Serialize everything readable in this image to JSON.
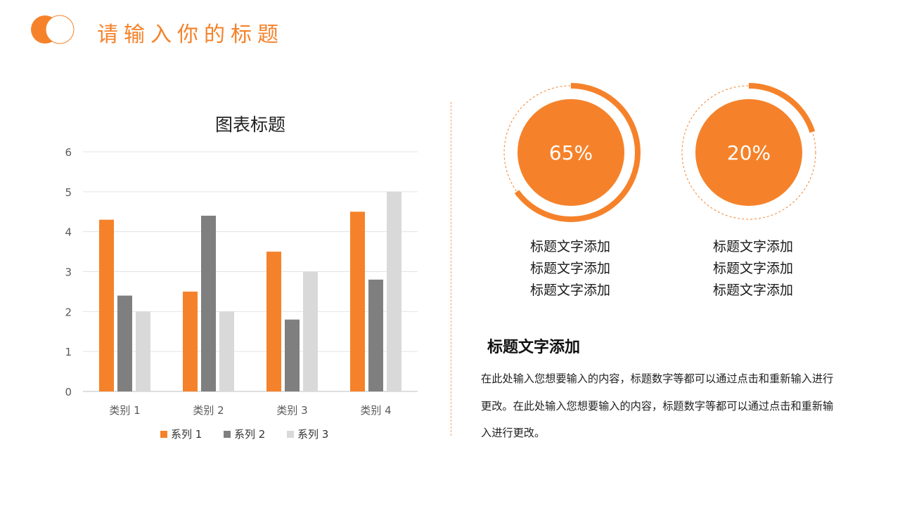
{
  "page": {
    "title": "请输入你的标题"
  },
  "colors": {
    "accent": "#F5822A",
    "gray_dark": "#7F7F7F",
    "gray_light": "#D9D9D9"
  },
  "chart_data": {
    "type": "bar",
    "title": "图表标题",
    "categories": [
      "类别 1",
      "类别 2",
      "类别 3",
      "类别 4"
    ],
    "series": [
      {
        "name": "系列 1",
        "values": [
          4.3,
          2.5,
          3.5,
          4.5
        ],
        "color": "#F5822A"
      },
      {
        "name": "系列 2",
        "values": [
          2.4,
          4.4,
          1.8,
          2.8
        ],
        "color": "#7F7F7F"
      },
      {
        "name": "系列 3",
        "values": [
          2,
          2,
          3,
          5
        ],
        "color": "#D9D9D9"
      }
    ],
    "ylim": [
      0,
      6
    ],
    "yticks": [
      0,
      1,
      2,
      3,
      4,
      5,
      6
    ],
    "grid": true,
    "legend": "bottom"
  },
  "rings": [
    {
      "percent": 65,
      "label": "65%",
      "caption_lines": [
        "标题文字添加",
        "标题文字添加",
        "标题文字添加"
      ]
    },
    {
      "percent": 20,
      "label": "20%",
      "caption_lines": [
        "标题文字添加",
        "标题文字添加",
        "标题文字添加"
      ]
    }
  ],
  "section": {
    "heading": "标题文字添加",
    "body": "在此处输入您想要输入的内容，标题数字等都可以通过点击和重新输入进行更改。在此处输入您想要输入的内容，标题数字等都可以通过点击和重新输入进行更改。"
  }
}
